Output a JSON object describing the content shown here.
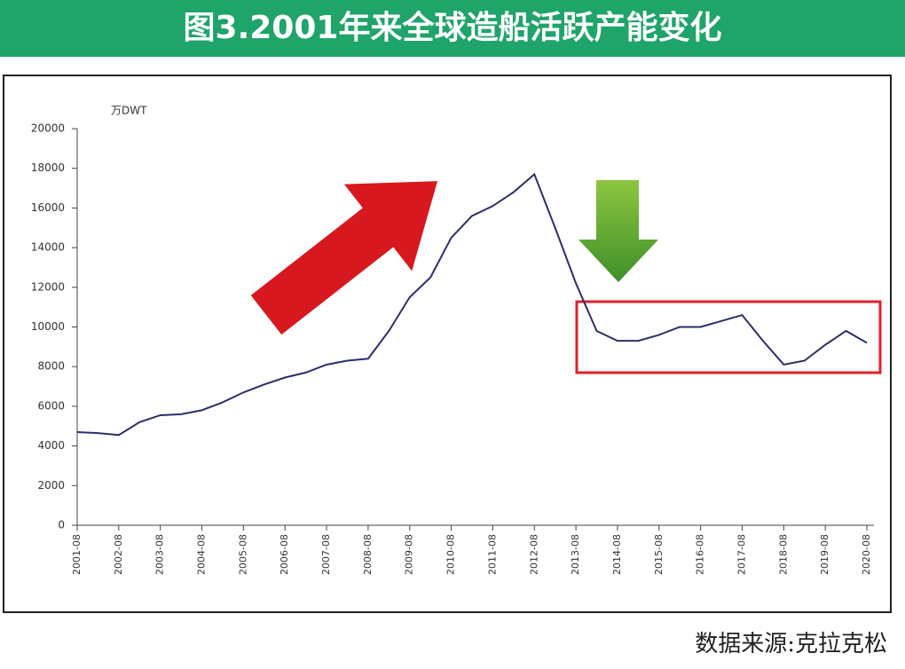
{
  "chart_data": {
    "type": "line",
    "title": "图3.2001年来全球造船活跃产能变化",
    "y_label": "万DWT",
    "source": "数据来源:克拉克松",
    "categories": [
      "2001-08",
      null,
      "2002-08",
      null,
      "2003-08",
      null,
      "2004-08",
      null,
      "2005-08",
      null,
      "2006-08",
      null,
      "2007-08",
      null,
      "2008-08",
      null,
      "2009-08",
      null,
      "2010-08",
      null,
      "2011-08",
      null,
      "2012-08",
      null,
      "2013-08",
      null,
      "2014-08",
      null,
      "2015-08",
      null,
      "2016-08",
      null,
      "2017-08",
      null,
      "2018-08",
      null,
      "2019-08",
      null,
      "2020-08"
    ],
    "series": [
      {
        "name": null,
        "color": "#2b2f6b",
        "values": [
          4700,
          4650,
          4550,
          5200,
          5550,
          5600,
          5800,
          6200,
          6700,
          7100,
          7450,
          7700,
          8100,
          8300,
          8400,
          9800,
          11500,
          12500,
          14500,
          15600,
          16100,
          16800,
          17700,
          15000,
          12200,
          9800,
          9300,
          9300,
          9600,
          10000,
          10000,
          10300,
          10600,
          9300,
          8100,
          8300,
          9100,
          9800,
          9200
        ]
      }
    ],
    "ylim": [
      0,
      20000
    ],
    "yticks": [
      0,
      2000,
      4000,
      6000,
      8000,
      10000,
      12000,
      14000,
      16000,
      18000,
      20000
    ]
  }
}
